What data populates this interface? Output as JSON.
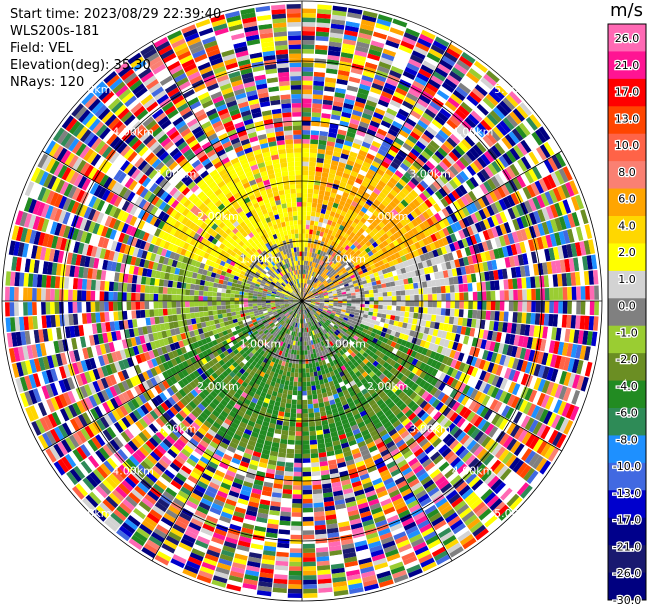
{
  "info": {
    "start_time": "Start time: 2023/08/29 22:39:40",
    "site": "WLS200s-181",
    "field": "Field: VEL",
    "elevation": "Elevation(deg): 35.30",
    "nrays": "NRays: 120"
  },
  "range_labels": [
    "1.00km",
    "2.00km",
    "3.00km",
    "4.00km",
    "5.00km"
  ],
  "colorbar": {
    "unit": "m/s",
    "ticks": [
      "26.0",
      "21.0",
      "17.0",
      "13.0",
      "10.0",
      "8.0",
      "6.0",
      "4.0",
      "2.0",
      "1.0",
      "0.0",
      "-1.0",
      "-2.0",
      "-4.0",
      "-6.0",
      "-8.0",
      "-10.0",
      "-13.0",
      "-17.0",
      "-21.0",
      "-26.0",
      "-30.0"
    ],
    "colors": [
      "#ff69b4",
      "#ff1493",
      "#ff0000",
      "#ff4500",
      "#ff6347",
      "#fa8072",
      "#ffa500",
      "#ffd700",
      "#ffff00",
      "#d3d3d3",
      "#808080",
      "#9acd32",
      "#6b8e23",
      "#228b22",
      "#2e8b57",
      "#1e90ff",
      "#4169e1",
      "#0000cd",
      "#00008b",
      "#191970",
      "#000080"
    ]
  }
}
